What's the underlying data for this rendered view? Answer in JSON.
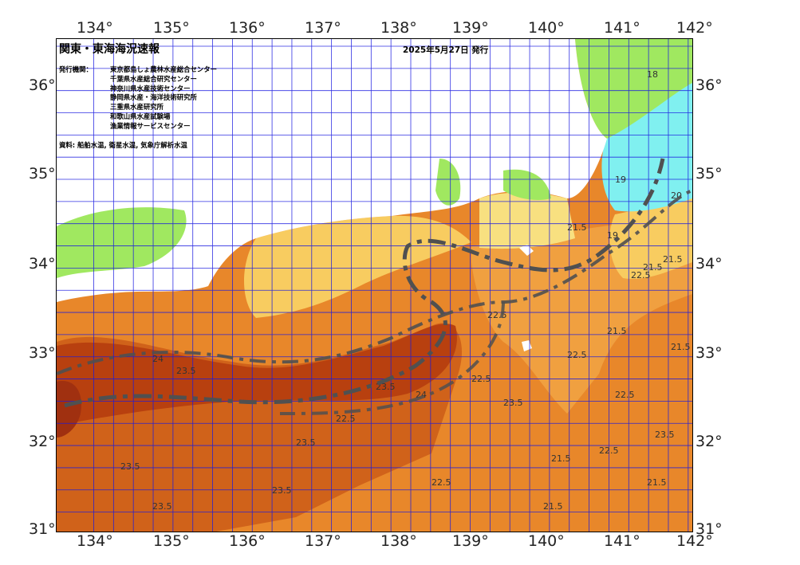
{
  "map": {
    "title": "関東・東海海況速報",
    "issued": "2025年5月27日 発行",
    "agencies_label": "発行機関：",
    "agencies": [
      "東京都島しょ農林水産総合センター",
      "千葉県水産総合研究センター",
      "神奈川県水産技術センター",
      "静岡県水産・海洋技術研究所",
      "三重県水産研究所",
      "和歌山県水産試験場",
      "漁業情報サービスセンター"
    ],
    "source": "資料: 船舶水温, 衛星水温, 気象庁解析水温",
    "longitude_ticks": [
      "134°",
      "135°",
      "136°",
      "137°",
      "138°",
      "139°",
      "140°",
      "141°",
      "142°"
    ],
    "latitude_ticks": [
      "36°",
      "35°",
      "34°",
      "33°",
      "32°",
      "31°"
    ],
    "contour_labels": [
      "18",
      "19",
      "19",
      "20",
      "21.5",
      "21.5",
      "21.5",
      "21.5",
      "22.5",
      "22.5",
      "22.5",
      "22.5",
      "22.5",
      "21.5",
      "21.5",
      "23.5",
      "23.5",
      "23.5",
      "23.5",
      "24",
      "24",
      "22.5",
      "21.5",
      "23.5",
      "23.5",
      "23.5",
      "22.5",
      "21.5",
      "22.5",
      "23.5"
    ],
    "colors": {
      "sea_warm": "#e8872a",
      "sea_hot": "#d0621a",
      "sea_kuroshio": "#b8400f",
      "sea_mid": "#f0a040",
      "sea_cool": "#f8cc60",
      "sea_cooler": "#f8e080",
      "sea_cold": "#a0e860",
      "sea_coldest": "#80f0f0",
      "land": "#ffffff",
      "grid": "#1a1ae0",
      "kuroshio_axis": "#505050"
    }
  }
}
